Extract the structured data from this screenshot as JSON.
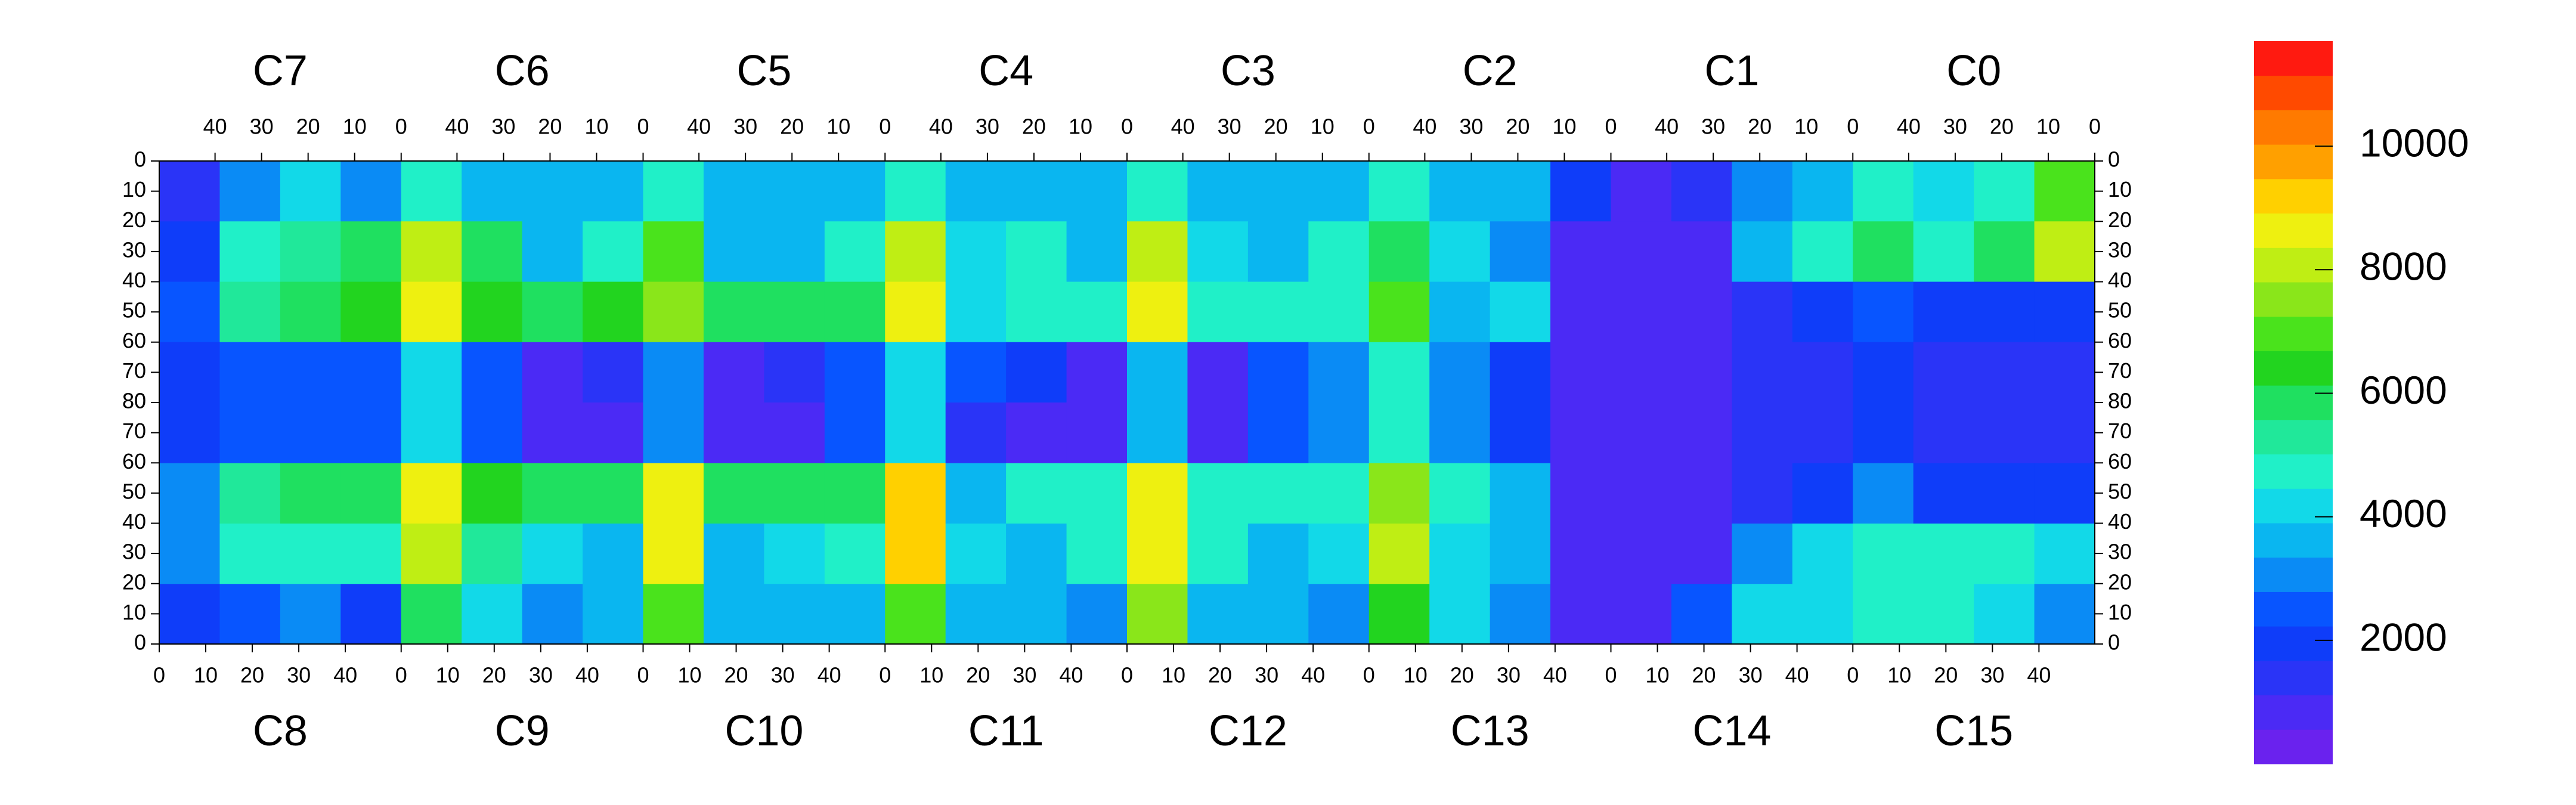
{
  "chart_data": {
    "type": "heatmap",
    "top_chips": [
      "C7",
      "C6",
      "C5",
      "C4",
      "C3",
      "C2",
      "C1",
      "C0"
    ],
    "bottom_chips": [
      "C8",
      "C9",
      "C10",
      "C11",
      "C12",
      "C13",
      "C14",
      "C15"
    ],
    "xlim": [
      0,
      52
    ],
    "ylim": [
      0,
      80
    ],
    "xticks": [
      0,
      10,
      20,
      30,
      40
    ],
    "yticks": [
      0,
      10,
      20,
      30,
      40,
      50,
      60,
      70,
      80
    ],
    "z_top": [
      [
        1500,
        3000,
        4000,
        3000,
        5000,
        3500,
        3500,
        3500,
        4500,
        3500,
        3500,
        3500,
        5000,
        3500,
        3500,
        3500,
        5000,
        3500,
        3500,
        3500,
        4500,
        3500,
        3500,
        2000,
        800,
        1500,
        3000,
        3500,
        5000,
        4000,
        5000,
        7000
      ],
      [
        2000,
        5000,
        5500,
        6000,
        8000,
        6000,
        3500,
        4500,
        7000,
        3500,
        3500,
        4500,
        8000,
        4000,
        4500,
        3500,
        8000,
        4000,
        3500,
        4500,
        6000,
        4000,
        3000,
        800,
        800,
        1000,
        3500,
        5000,
        6000,
        5000,
        6000,
        8000
      ],
      [
        2500,
        5500,
        6000,
        6500,
        8500,
        6500,
        6000,
        6500,
        7500,
        6000,
        6000,
        6000,
        8500,
        4000,
        4500,
        5000,
        8500,
        4500,
        5000,
        5000,
        7000,
        3500,
        4000,
        800,
        800,
        900,
        1500,
        2000,
        2500,
        2000,
        2000,
        2000
      ],
      [
        2000,
        2500,
        2500,
        2500,
        4000,
        2500,
        1000,
        1500,
        3000,
        1000,
        1500,
        2500,
        4000,
        2500,
        2000,
        1000,
        3500,
        1000,
        2500,
        3000,
        5000,
        3000,
        2000,
        800,
        700,
        800,
        1500,
        1500,
        2000,
        1500,
        1500,
        1500
      ]
    ],
    "z_bottom": [
      [
        2000,
        2500,
        3000,
        2000,
        6000,
        4000,
        3000,
        3500,
        7000,
        3500,
        3500,
        3500,
        7000,
        3500,
        3500,
        3000,
        7500,
        3500,
        3500,
        3000,
        6500,
        4000,
        3000,
        800,
        800,
        2500,
        4000,
        4000,
        5000,
        4500,
        4000,
        3000
      ],
      [
        3000,
        5000,
        5000,
        4500,
        8000,
        5500,
        4000,
        3500,
        8500,
        3500,
        4000,
        4500,
        9000,
        4000,
        3500,
        4500,
        8500,
        5000,
        3500,
        4000,
        8000,
        4000,
        3500,
        800,
        800,
        1000,
        3000,
        4000,
        5000,
        5000,
        5000,
        4000
      ],
      [
        3000,
        5500,
        6000,
        6000,
        8500,
        6500,
        6000,
        6000,
        8500,
        6000,
        6000,
        6000,
        9000,
        3500,
        4500,
        5000,
        8500,
        5000,
        4500,
        5000,
        7500,
        4500,
        3500,
        800,
        800,
        900,
        1500,
        2000,
        3000,
        2000,
        2000,
        2000
      ],
      [
        2000,
        2500,
        2500,
        2500,
        4000,
        2500,
        1000,
        1000,
        3000,
        1000,
        1000,
        2500,
        4000,
        1500,
        1000,
        1000,
        3500,
        1000,
        2500,
        3000,
        5000,
        3000,
        2000,
        800,
        700,
        800,
        1500,
        1500,
        2000,
        1500,
        1500,
        1500
      ]
    ],
    "zlim": [
      0,
      11700
    ],
    "zticks": [
      2000,
      4000,
      6000,
      8000,
      10000
    ],
    "colors": [
      "#6a22ee",
      "#4b2af5",
      "#2a34f7",
      "#0f3df9",
      "#0855ff",
      "#0a8bf5",
      "#0ab6f0",
      "#12d9e8",
      "#20f0c8",
      "#20e89a",
      "#1fe060",
      "#22d41f",
      "#4ae31c",
      "#8ae61a",
      "#bfee14",
      "#eef010",
      "#ffd000",
      "#ffa000",
      "#ff7a00",
      "#ff4a00",
      "#ff1a10"
    ]
  }
}
